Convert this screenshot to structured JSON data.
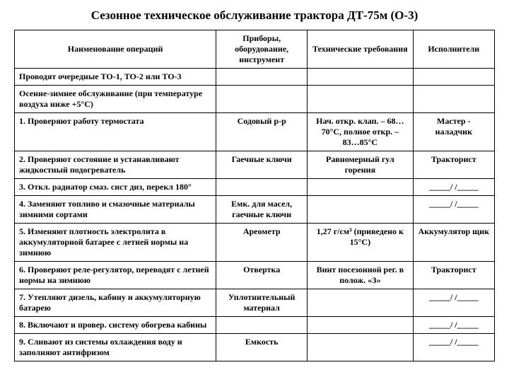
{
  "title": "Сезонное техническое обслуживание трактора ДТ-75м (О-3)",
  "table": {
    "headers": [
      "Наименование операций",
      "Приборы, оборудование, инструмент",
      "Технические требования",
      "Исполнители"
    ],
    "rows": [
      {
        "c1": "Проводят очередные ТО-1, ТО-2 или ТО-3",
        "c2": "",
        "c3": "",
        "c4": ""
      },
      {
        "c1": "Осенне-зимнее обслуживание (при температуре воздуха ниже +5°С)",
        "c2": "",
        "c3": "",
        "c4": ""
      },
      {
        "c1": "1. Проверяют работу термостата",
        "c2": "Содовый р-р",
        "c3": "Нач. откр. клап. – 68…70°С, полное откр. – 83…85°С",
        "c4": "Мастер - наладчик"
      },
      {
        "c1": "2. Проверяют состояние и устанавливают жидкостный подогреватель",
        "c2": "Гаечные ключи",
        "c3": "Равномерный гул горения",
        "c4": "Тракторист"
      },
      {
        "c1": "3. Откл. радиатор смаз. сист диз, перекл 180°",
        "c2": "",
        "c3": "",
        "c4": "_____/ /_____"
      },
      {
        "c1": "4. Заменяют топливо и смазочные материалы зимними сортами",
        "c2": "Емк. для масел, гаечные ключи",
        "c3": "",
        "c4": "_____/ /_____"
      },
      {
        "c1": "5. Изменяют плотность электролита в аккумуляторной батарее с летней нормы на зимнюю",
        "c2": "Ареометр",
        "c3": "1,27 г/см³ (приведено к 15°С)",
        "c4": "Аккумулятор щик"
      },
      {
        "c1": "6. Проверяют реле-регулятор, переводят с летней нормы на зимнюю",
        "c2": "Отвертка",
        "c3": "Винт посезонной рег. в полож. «З»",
        "c4": "Тракторист"
      },
      {
        "c1": "7. Утепляют дизель, кабину и аккумуляторную батарею",
        "c2": "Уплотнительный материал",
        "c3": "",
        "c4": "_____/ /_____"
      },
      {
        "c1": "8. Включают и провер. систему обогрева кабины",
        "c2": "",
        "c3": "",
        "c4": "_____/ /_____"
      },
      {
        "c1": "9. Сливают из системы охлаждения воду и заполняют антифризом",
        "c2": "Емкость",
        "c3": "",
        "c4": "_____/ /_____"
      }
    ]
  }
}
